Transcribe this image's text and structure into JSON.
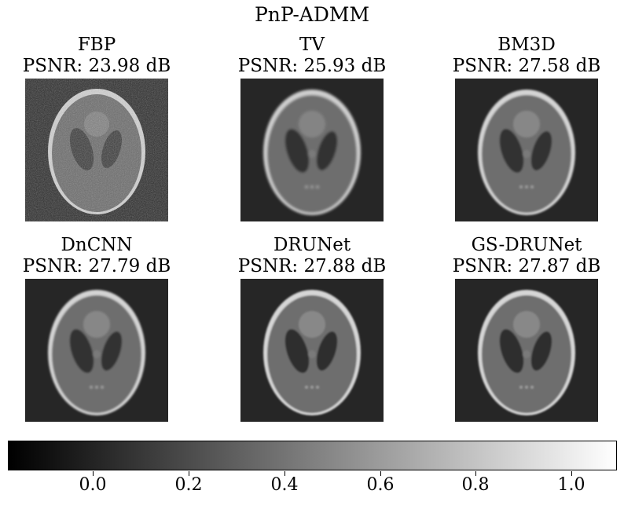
{
  "figure": {
    "title": "PnP-ADMM"
  },
  "panels": [
    {
      "name": "FBP",
      "psnr": "PSNR: 23.98 dB",
      "style": "noisy"
    },
    {
      "name": "TV",
      "psnr": "PSNR: 25.93 dB",
      "style": "smooth"
    },
    {
      "name": "BM3D",
      "psnr": "PSNR: 27.58 dB",
      "style": "smooth"
    },
    {
      "name": "DnCNN",
      "psnr": "PSNR: 27.79 dB",
      "style": "smooth"
    },
    {
      "name": "DRUNet",
      "psnr": "PSNR: 27.88 dB",
      "style": "smooth"
    },
    {
      "name": "GS-DRUNet",
      "psnr": "PSNR: 27.87 dB",
      "style": "smooth"
    }
  ],
  "colorbar": {
    "colormap": "gray",
    "range": [
      -0.15,
      1.1
    ],
    "ticks": [
      "0.0",
      "0.2",
      "0.4",
      "0.6",
      "0.8",
      "1.0"
    ],
    "colors": {
      "low": "#000000",
      "high": "#ffffff"
    }
  }
}
